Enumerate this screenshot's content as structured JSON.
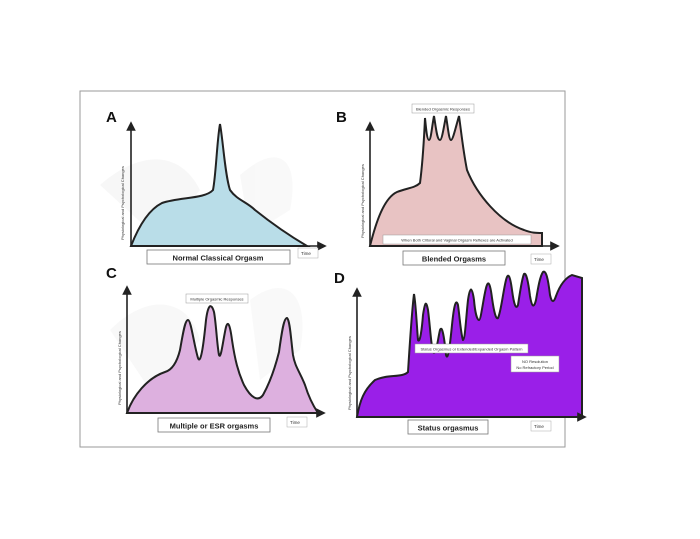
{
  "panels": [
    {
      "letter": "A",
      "ylabel": "Physiological and Psychological Changes",
      "xlabel": "Time",
      "caption": "Normal Classical Orgasm",
      "fill": "#b9dde8"
    },
    {
      "letter": "B",
      "ylabel": "Physiological and Psychological Changes",
      "xlabel": "Time",
      "caption": "Blended Orgasms",
      "annotation": "Blended Orgasmic Responses",
      "note": "When Both Clitoral and Vaginal Orgasm Reflexes are Activated",
      "fill": "#e8c3c3"
    },
    {
      "letter": "C",
      "ylabel": "Physiological and Psychological Changes",
      "xlabel": "Time",
      "caption": "Multiple or ESR orgasms",
      "annotation": "Multiple Orgasmic Responses",
      "fill": "#ddb0df"
    },
    {
      "letter": "D",
      "ylabel": "Physiological and Psychological Changes",
      "xlabel": "Time",
      "caption": "Status orgasmus",
      "annotation": "Status Orgasmus or Extended/Expanded Orgasm Pattern",
      "note_lines": [
        "NO Resolution",
        "No Refractory Period"
      ],
      "fill": "#9a1fe8"
    }
  ]
}
